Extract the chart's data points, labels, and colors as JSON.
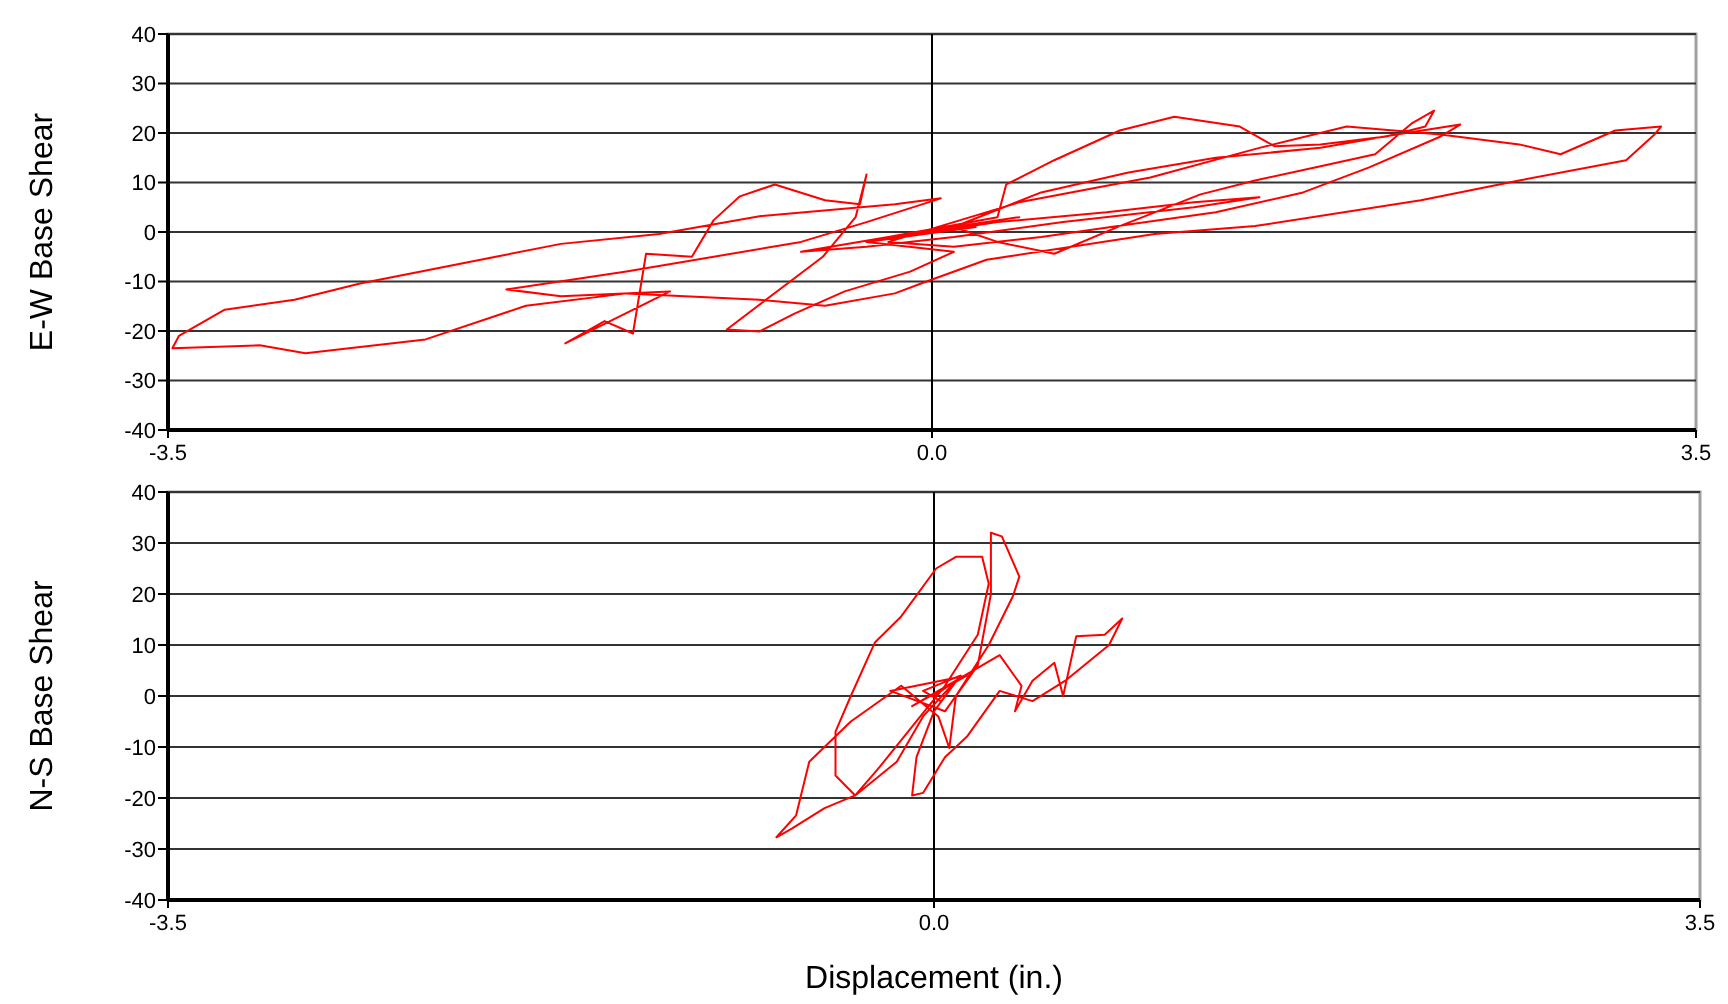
{
  "chart_data": [
    {
      "type": "line",
      "ylabel": "E-W Base Shear",
      "xlim": [
        -3.5,
        3.5
      ],
      "xticks": [
        {
          "value": -3.5,
          "label": "-3.5"
        },
        {
          "value": 0,
          "label": "0.0"
        },
        {
          "value": 3.5,
          "label": "3.5"
        }
      ],
      "ylim": [
        -40,
        40
      ],
      "yticks": [
        -40,
        -30,
        -20,
        -10,
        0,
        10,
        20,
        30,
        40
      ],
      "grid": "y",
      "ref_lines": [
        {
          "axis": "x",
          "value": 0,
          "color": "#000000"
        }
      ],
      "x": [
        0,
        0.3,
        0.8,
        1.2,
        1.5,
        1.2,
        0.6,
        0.1,
        -0.3,
        -0.6,
        -0.2,
        0.3,
        0.34,
        0.56,
        0.86,
        1.11,
        1.41,
        1.57,
        1.78,
        2.08,
        2.26,
        2.3,
        2.2,
        2.03,
        1.78,
        1.48,
        1.23,
        0.86,
        0.56,
        0.3,
        0.1,
        0.5,
        0.9,
        1.3,
        1.78,
        2.1,
        2.42,
        2.33,
        2.0,
        1.7,
        1.3,
        0.9,
        0.5,
        0.1,
        -0.2,
        0.4,
        1.0,
        1.5,
        1.9,
        2.33,
        2.69,
        2.88,
        3.13,
        3.34,
        3.31,
        3.18,
        2.69,
        2.24,
        1.48,
        1.02,
        0.25,
        -0.05,
        -0.17,
        -0.49,
        -0.79,
        -1.4,
        -1.86,
        -2.32,
        -2.87,
        -3.08,
        -3.48,
        -3.45,
        -3.24,
        -2.92,
        -2.62,
        -1.7,
        -1.25,
        -0.79,
        -0.17,
        0.04,
        -0.3,
        -0.6,
        -1.0,
        -1.4,
        -1.95,
        -1.7,
        -1.2,
        -1.68,
        -1.5,
        -1.37,
        -1.31,
        -1.1,
        -1.0,
        -0.88,
        -0.72,
        -0.49,
        -0.33,
        -0.3,
        -0.35,
        -0.5,
        -0.94,
        -0.79,
        -0.63,
        -0.4,
        -0.1,
        0.1,
        -0.3,
        0.2,
        -0.2,
        0.4,
        0.02
      ],
      "series": [
        {
          "color": "#ff0000",
          "values": [
            0,
            2,
            4,
            6,
            7,
            5,
            2,
            -1,
            -3,
            -4,
            -1,
            3,
            9.6,
            14.5,
            20.5,
            23.3,
            21.3,
            17.3,
            17.7,
            19.3,
            21.3,
            24.5,
            22,
            15.7,
            13.3,
            10.4,
            7.6,
            1.2,
            -4.4,
            -2,
            1,
            8,
            12,
            15,
            17,
            19.5,
            21.7,
            19.3,
            13,
            8,
            4,
            1.5,
            -1,
            -3,
            -2,
            6,
            11,
            17,
            21.3,
            19.7,
            17.7,
            15.7,
            20.5,
            21.3,
            19.7,
            14.5,
            10.4,
            6.4,
            1.2,
            -0.4,
            -5.6,
            -10.4,
            -12.4,
            -14.9,
            -13.7,
            -12.4,
            -14.9,
            -21.7,
            -24.5,
            -22.9,
            -23.5,
            -21,
            -15.7,
            -13.7,
            -10.4,
            -2.4,
            -0.4,
            3.2,
            5.6,
            6.8,
            2,
            -2,
            -5,
            -8,
            -11.6,
            -13,
            -12,
            -22.5,
            -18,
            -20.5,
            -4.4,
            -5,
            2.4,
            7.2,
            9.6,
            6.4,
            5.6,
            11.6,
            3,
            -5,
            -19.7,
            -20.1,
            -16.5,
            -12,
            -8,
            -4,
            -2,
            1,
            -1,
            3,
            0.5
          ]
        }
      ]
    },
    {
      "type": "line",
      "ylabel": "N-S Base Shear",
      "xlabel": "Displacement (in.)",
      "xlim": [
        -3.5,
        3.5
      ],
      "xticks": [
        {
          "value": -3.5,
          "label": "-3.5"
        },
        {
          "value": 0,
          "label": "0.0"
        },
        {
          "value": 3.5,
          "label": "3.5"
        }
      ],
      "ylim": [
        -40,
        40
      ],
      "yticks": [
        -40,
        -30,
        -20,
        -10,
        0,
        10,
        20,
        30,
        40
      ],
      "grid": "y",
      "ref_lines": [
        {
          "axis": "x",
          "value": 0,
          "color": "#000000"
        }
      ],
      "x": [
        0,
        0.1,
        -0.1,
        0.15,
        -0.2,
        0.05,
        0.2,
        0.26,
        0.26,
        0.31,
        0.39,
        0.36,
        0.25,
        0.1,
        0.07,
        0.02,
        -0.15,
        -0.38,
        -0.57,
        -0.63,
        -0.72,
        -0.65,
        -0.5,
        -0.36,
        -0.25,
        -0.1,
        0.05,
        0.2,
        0.25,
        0.22,
        0.1,
        0.01,
        -0.15,
        -0.27,
        -0.38,
        -0.45,
        -0.45,
        -0.36,
        -0.17,
        -0.05,
        0.1,
        0.3,
        0.4,
        0.37,
        0.45,
        0.55,
        0.59,
        0.65,
        0.78,
        0.86,
        0.8,
        0.6,
        0.45,
        0.3,
        0.15,
        0.05,
        -0.05,
        -0.1,
        -0.08,
        0,
        0.12,
        -0.05,
        0.03
      ],
      "series": [
        {
          "color": "#ff0000",
          "values": [
            0,
            3,
            -2,
            4,
            1,
            -3,
            6,
            20,
            32,
            31.3,
            23.4,
            19.5,
            10,
            0,
            -10.2,
            -4,
            2,
            -5,
            -12.9,
            -23.4,
            -27.7,
            -26,
            -22,
            -19.5,
            -14,
            -6,
            2,
            12,
            22,
            27.3,
            27.3,
            25,
            15.6,
            10.5,
            0,
            -7,
            -15.6,
            -19.5,
            -12.9,
            -4,
            3,
            8,
            2,
            -3,
            3,
            6.5,
            0,
            11.7,
            12,
            15.2,
            10,
            3,
            -1,
            1,
            -8,
            -12,
            -19,
            -19.5,
            -12,
            -3,
            4,
            1,
            -1
          ]
        }
      ]
    }
  ]
}
